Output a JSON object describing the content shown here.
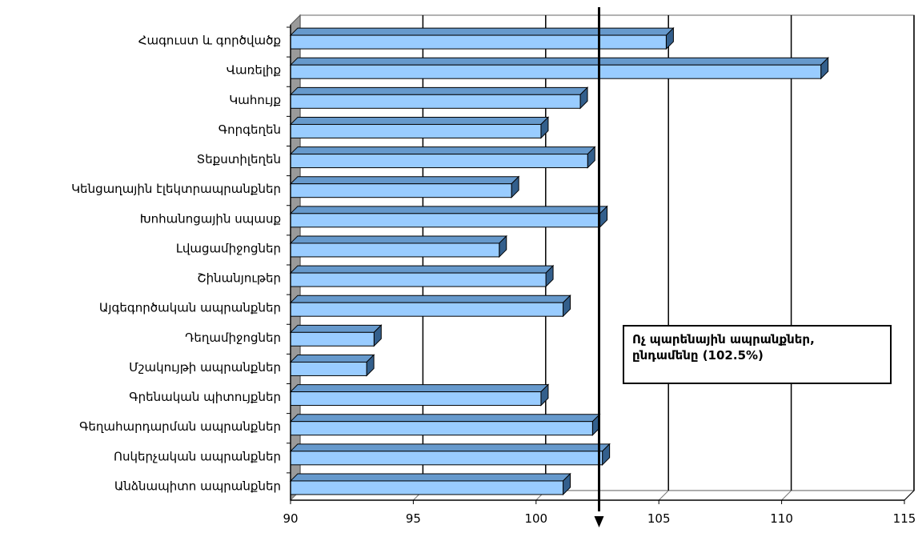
{
  "chart_data": {
    "type": "bar",
    "orientation": "horizontal",
    "style": "3d",
    "categories": [
      "Հագուստ  և գործվածք",
      "Վառելիք",
      "Կահույք",
      "Գորգեղեն",
      "Տեքստիլեղեն",
      "Կենցաղային էլեկտրապրանքներ",
      "Խոհանոցային  սպասք",
      "Լվացամիջոցներ",
      "Շինանյութեր",
      "Այգեգործական ապրանքներ",
      "Դեղամիջոցներ",
      "Մշակույթի  ապրանքներ",
      "Գրենական պիտույքներ",
      "Գեղահարդարման ապրանքներ",
      "Ոսկերչական ապրանքներ",
      "Անձնապիտո ապրանքներ"
    ],
    "values": [
      105.3,
      111.6,
      101.8,
      100.2,
      102.1,
      99.0,
      102.6,
      98.5,
      100.4,
      101.1,
      93.4,
      93.1,
      100.2,
      102.3,
      102.7,
      101.1
    ],
    "xlim": [
      90,
      115
    ],
    "xticks": [
      "90",
      "95",
      "100",
      "105",
      "110",
      "115"
    ],
    "reference_line": {
      "value": 102.5,
      "color": "#000000"
    },
    "annotation": {
      "line1": "Ոչ պարենային ապրանքներ,",
      "line2": "ընդամենը (102.5%)"
    },
    "grid": "vertical",
    "colors": {
      "bar_front": "#99ccff",
      "bar_top": "#6699cc",
      "bar_side": "#335f8c",
      "wall": "#9a9a9a",
      "gridline": "#000000"
    }
  }
}
